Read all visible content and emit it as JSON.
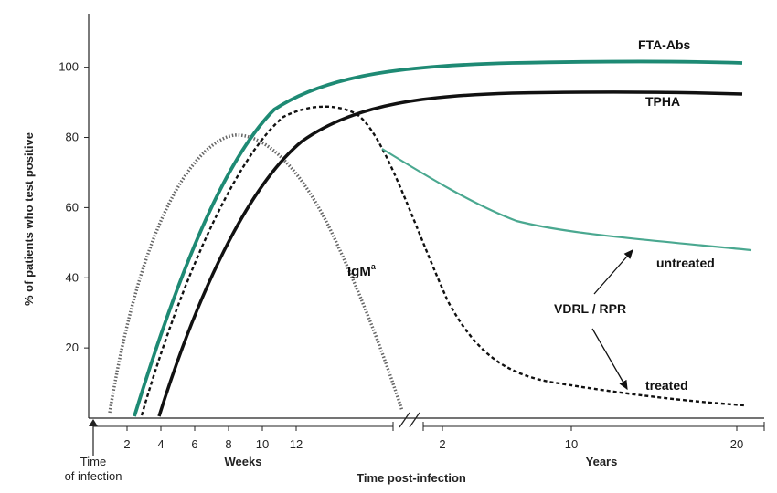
{
  "chart_data": {
    "type": "line",
    "ylabel": "% of patients who test positive",
    "xlabel": "Time post-infection",
    "ylim": [
      0,
      115
    ],
    "y_ticks": [
      "20",
      "40",
      "60",
      "80",
      "100"
    ],
    "x_segments": [
      {
        "name": "Weeks",
        "ticks": [
          "2",
          "4",
          "6",
          "8",
          "10",
          "12"
        ]
      },
      {
        "name": "Years",
        "ticks": [
          "2",
          "10",
          "20"
        ]
      }
    ],
    "origin_label": [
      "Time",
      "of infection"
    ],
    "series": [
      {
        "name": "FTA-Abs",
        "color": "#1e8a74",
        "style": "solid",
        "points": [
          [
            4,
            0
          ],
          [
            6,
            22
          ],
          [
            8,
            45
          ],
          [
            10,
            66
          ],
          [
            12,
            83
          ],
          [
            15,
            92
          ],
          [
            "2y",
            99
          ],
          [
            "10y",
            103
          ],
          [
            "20y",
            103
          ]
        ]
      },
      {
        "name": "TPHA",
        "color": "#111111",
        "style": "solid",
        "points": [
          [
            5,
            0
          ],
          [
            7,
            24
          ],
          [
            9,
            46
          ],
          [
            11,
            62
          ],
          [
            13,
            75
          ],
          [
            16,
            86
          ],
          [
            "2y",
            94
          ],
          [
            "10y",
            100
          ],
          [
            "20y",
            101
          ]
        ]
      },
      {
        "name": "IgM",
        "superscript": "a",
        "color": "#555555",
        "style": "dotted",
        "points": [
          [
            2,
            0
          ],
          [
            5,
            50
          ],
          [
            8,
            78
          ],
          [
            10,
            83
          ],
          [
            12,
            80
          ],
          [
            15,
            60
          ],
          [
            20,
            20
          ],
          [
            "1.5y",
            0
          ]
        ]
      },
      {
        "name": "VDRL / RPR",
        "color": "#111111",
        "style": "dashed",
        "points": [
          [
            4,
            0
          ],
          [
            6,
            28
          ],
          [
            8,
            55
          ],
          [
            10,
            75
          ],
          [
            12,
            88
          ],
          [
            15,
            91
          ],
          [
            18,
            85
          ],
          [
            "1y",
            65
          ],
          [
            "4y",
            20
          ],
          [
            "10y",
            12
          ],
          [
            "20y",
            5
          ]
        ]
      },
      {
        "name": "untreated",
        "color": "#4aa890",
        "style": "solid",
        "points": [
          [
            "1y",
            79
          ],
          [
            "4y",
            64
          ],
          [
            "7y",
            57
          ],
          [
            "14y",
            53
          ],
          [
            "20y",
            50
          ]
        ]
      },
      {
        "name": "treated",
        "color": "#111111",
        "style": "dashed",
        "points": [
          [
            "4y",
            20
          ],
          [
            "10y",
            12
          ],
          [
            "20y",
            5
          ]
        ]
      }
    ],
    "annotations": {
      "fta": "FTA-Abs",
      "tpha": "TPHA",
      "igm": "IgM",
      "igm_sup": "a",
      "vdrl": "VDRL / RPR",
      "untreated": "untreated",
      "treated": "treated"
    },
    "grid": false
  }
}
